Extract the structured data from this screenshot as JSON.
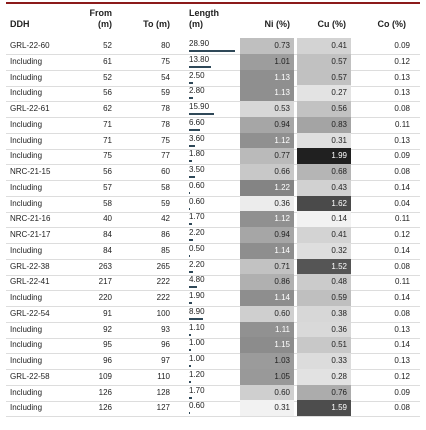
{
  "table": {
    "header": [
      "DDH",
      "From\n(m)",
      "To (m)",
      "Length\n(m)",
      "Ni (%)",
      "Cu (%)",
      "Co (%)"
    ],
    "rows": [
      [
        "GRL-22-60",
        "52",
        "80",
        "28.90",
        "0.73",
        "0.41",
        "0.09"
      ],
      [
        "Including",
        "61",
        "75",
        "13.80",
        "1.01",
        "0.57",
        "0.12"
      ],
      [
        "Including",
        "52",
        "54",
        "2.50",
        "1.13",
        "0.57",
        "0.13"
      ],
      [
        "Including",
        "56",
        "59",
        "2.80",
        "1.13",
        "0.27",
        "0.13"
      ],
      [
        "GRL-22-61",
        "62",
        "78",
        "15.90",
        "0.53",
        "0.56",
        "0.08"
      ],
      [
        "Including",
        "71",
        "78",
        "6.60",
        "0.94",
        "0.83",
        "0.11"
      ],
      [
        "Including",
        "71",
        "75",
        "3.60",
        "1.12",
        "0.31",
        "0.13"
      ],
      [
        "Including",
        "75",
        "77",
        "1.80",
        "0.77",
        "1.99",
        "0.09"
      ],
      [
        "NRC-21-15",
        "56",
        "60",
        "3.50",
        "0.66",
        "0.68",
        "0.08"
      ],
      [
        "Including",
        "57",
        "58",
        "0.60",
        "1.22",
        "0.43",
        "0.14"
      ],
      [
        "Including",
        "58",
        "59",
        "0.60",
        "0.36",
        "1.62",
        "0.04"
      ],
      [
        "NRC-21-16",
        "40",
        "42",
        "1.70",
        "1.12",
        "0.14",
        "0.11"
      ],
      [
        "NRC-21-17",
        "84",
        "86",
        "2.20",
        "0.94",
        "0.41",
        "0.12"
      ],
      [
        "Including",
        "84",
        "85",
        "0.50",
        "1.14",
        "0.32",
        "0.14"
      ],
      [
        "GRL-22-38",
        "263",
        "265",
        "2.20",
        "0.71",
        "1.52",
        "0.08"
      ],
      [
        "GRL-22-41",
        "217",
        "222",
        "4.80",
        "0.86",
        "0.48",
        "0.11"
      ],
      [
        "Including",
        "220",
        "222",
        "1.90",
        "1.14",
        "0.59",
        "0.14"
      ],
      [
        "GRL-22-54",
        "91",
        "100",
        "8.90",
        "0.60",
        "0.38",
        "0.08"
      ],
      [
        "Including",
        "92",
        "93",
        "1.10",
        "1.11",
        "0.36",
        "0.13"
      ],
      [
        "Including",
        "95",
        "96",
        "1.00",
        "1.15",
        "0.51",
        "0.14"
      ],
      [
        "Including",
        "96",
        "97",
        "1.00",
        "1.03",
        "0.33",
        "0.13"
      ],
      [
        "GRL-22-58",
        "109",
        "110",
        "1.20",
        "1.05",
        "0.28",
        "0.12"
      ],
      [
        "Including",
        "126",
        "128",
        "1.70",
        "0.60",
        "0.76",
        "0.09"
      ],
      [
        "Including",
        "126",
        "127",
        "0.60",
        "0.31",
        "1.59",
        "0.08"
      ]
    ]
  }
}
